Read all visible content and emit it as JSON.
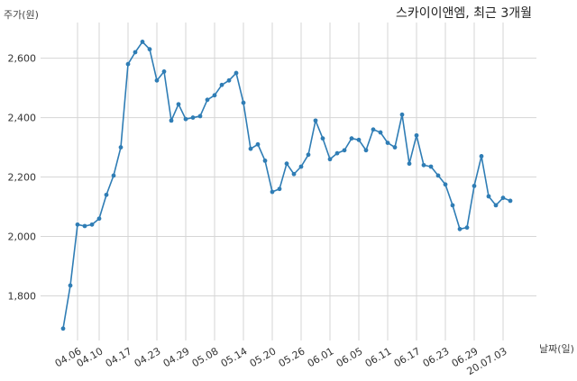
{
  "chart_data": {
    "type": "line",
    "title": "스카이이앤엠, 최근 3개월",
    "ylabel": "주가(원)",
    "xlabel": "날짜(일)",
    "ylim": [
      1650,
      2720
    ],
    "yticks": [
      1800,
      2000,
      2200,
      2400,
      2600
    ],
    "ytick_labels": [
      "1,800",
      "2,000",
      "2,200",
      "2,400",
      "2,600"
    ],
    "xtick_labels": [
      "04.06",
      "04.10",
      "04.17",
      "04.23",
      "04.29",
      "05.08",
      "05.14",
      "05.20",
      "05.26",
      "06.01",
      "06.05",
      "06.11",
      "06.17",
      "06.23",
      "06.29",
      "20.07.03"
    ],
    "xtick_index": [
      2,
      5,
      9,
      13,
      17,
      21,
      25,
      29,
      33,
      37,
      41,
      45,
      49,
      53,
      57,
      61
    ],
    "grid": true,
    "line_color": "#2f7db5",
    "series": [
      {
        "values": [
          1690,
          1835,
          2040,
          2035,
          2040,
          2060,
          2140,
          2205,
          2300,
          2580,
          2620,
          2655,
          2630,
          2525,
          2555,
          2390,
          2445,
          2395,
          2400,
          2405,
          2460,
          2475,
          2510,
          2525,
          2550,
          2450,
          2295,
          2310,
          2255,
          2150,
          2160,
          2245,
          2210,
          2235,
          2275,
          2390,
          2330,
          2260,
          2280,
          2290,
          2330,
          2325,
          2290,
          2360,
          2350,
          2315,
          2300,
          2410,
          2245,
          2340,
          2240,
          2235,
          2205,
          2175,
          2105,
          2025,
          2030,
          2170,
          2270,
          2135,
          2105,
          2130,
          2120
        ]
      }
    ]
  }
}
